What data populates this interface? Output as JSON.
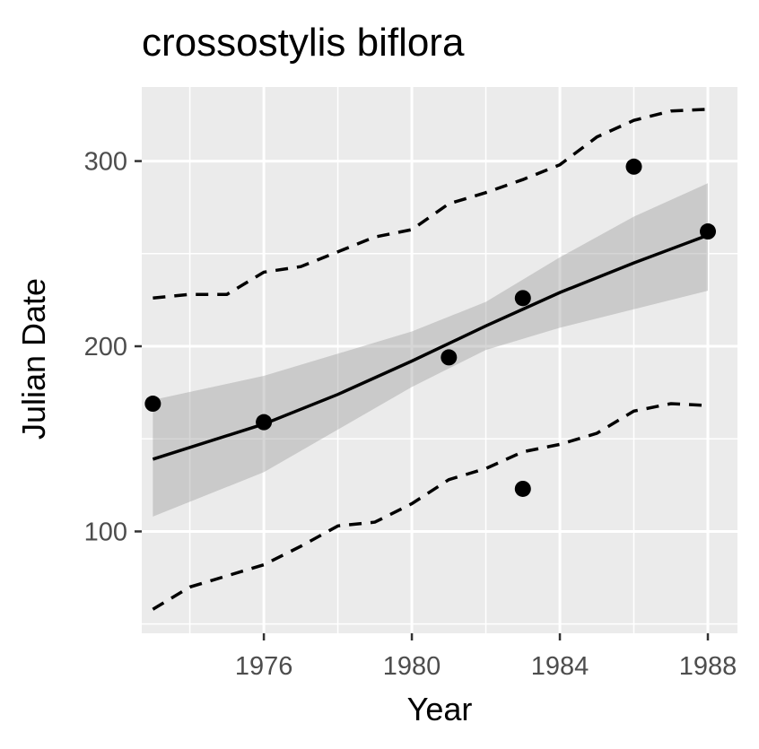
{
  "chart_data": {
    "type": "scatter",
    "title": "crossostylis biflora",
    "xlabel": "Year",
    "ylabel": "Julian Date",
    "xlim": [
      1972.7,
      1988.8
    ],
    "ylim": [
      45,
      340
    ],
    "xticks": [
      1976,
      1980,
      1984,
      1988
    ],
    "yticks": [
      100,
      200,
      300
    ],
    "grid": true,
    "points": [
      {
        "x": 1973,
        "y": 169
      },
      {
        "x": 1976,
        "y": 159
      },
      {
        "x": 1981,
        "y": 194
      },
      {
        "x": 1983,
        "y": 226
      },
      {
        "x": 1983,
        "y": 123
      },
      {
        "x": 1986,
        "y": 297
      },
      {
        "x": 1988,
        "y": 262
      }
    ],
    "fit_line": {
      "x": [
        1973,
        1976,
        1978,
        1980,
        1982,
        1984,
        1986,
        1988
      ],
      "y": [
        139,
        158,
        174,
        192,
        211,
        229,
        245,
        260
      ]
    },
    "confidence_band": {
      "x": [
        1973,
        1976,
        1978,
        1980,
        1982,
        1984,
        1986,
        1988
      ],
      "lower": [
        108,
        132,
        155,
        178,
        198,
        210,
        220,
        230
      ],
      "upper": [
        171,
        184,
        196,
        208,
        224,
        248,
        270,
        288
      ]
    },
    "quantile_upper": {
      "x": [
        1973,
        1974,
        1975,
        1976,
        1977,
        1978,
        1979,
        1980,
        1981,
        1982,
        1983,
        1984,
        1985,
        1986,
        1987,
        1988
      ],
      "y": [
        226,
        228,
        228,
        240,
        243,
        251,
        259,
        263,
        277,
        283,
        290,
        298,
        313,
        322,
        327,
        328
      ]
    },
    "quantile_lower": {
      "x": [
        1973,
        1974,
        1975,
        1976,
        1977,
        1978,
        1979,
        1980,
        1981,
        1982,
        1983,
        1984,
        1985,
        1986,
        1987,
        1988
      ],
      "y": [
        58,
        70,
        76,
        82,
        92,
        103,
        105,
        115,
        128,
        134,
        143,
        147,
        153,
        165,
        169,
        168
      ]
    }
  }
}
